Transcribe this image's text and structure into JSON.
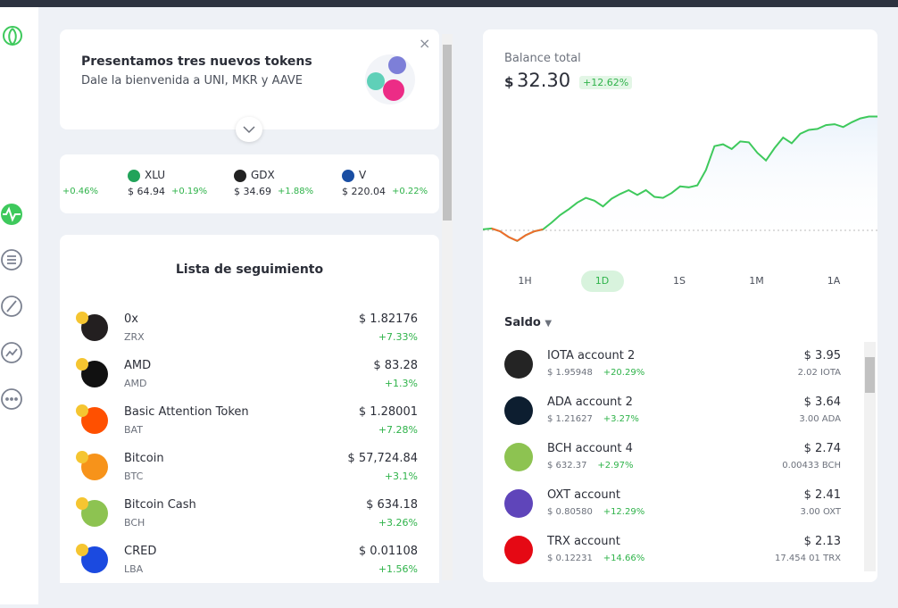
{
  "banner": {
    "title": "Presentamos tres nuevos tokens",
    "subtitle": "Dale la bienvenida a UNI, MKR y AAVE"
  },
  "ticker": [
    {
      "name": "",
      "price": "",
      "change": "+0.46%",
      "color": "#ffffff"
    },
    {
      "name": "XLU",
      "price": "$ 64.94",
      "change": "+0.19%",
      "color": "#22a35a"
    },
    {
      "name": "GDX",
      "price": "$ 34.69",
      "change": "+1.88%",
      "color": "#222222"
    },
    {
      "name": "V",
      "price": "$ 220.04",
      "change": "+0.22%",
      "color": "#1a4ea3"
    }
  ],
  "watchlist": {
    "title": "Lista de seguimiento",
    "rows": [
      {
        "name": "0x",
        "symbol": "ZRX",
        "price": "$ 1.82176",
        "change": "+7.33%",
        "color": "#231f20"
      },
      {
        "name": "AMD",
        "symbol": "AMD",
        "price": "$ 83.28",
        "change": "+1.3%",
        "color": "#111111"
      },
      {
        "name": "Basic Attention Token",
        "symbol": "BAT",
        "price": "$ 1.28001",
        "change": "+7.28%",
        "color": "#ff5000"
      },
      {
        "name": "Bitcoin",
        "symbol": "BTC",
        "price": "$ 57,724.84",
        "change": "+3.1%",
        "color": "#f7931a"
      },
      {
        "name": "Bitcoin Cash",
        "symbol": "BCH",
        "price": "$ 634.18",
        "change": "+3.26%",
        "color": "#8dc351"
      },
      {
        "name": "CRED",
        "symbol": "LBA",
        "price": "$ 0.01108",
        "change": "+1.56%",
        "color": "#1b4ae0"
      }
    ]
  },
  "balance": {
    "label": "Balance total",
    "currency": "$",
    "amount": "32.30",
    "change": "+12.62%",
    "chart": {
      "values": [
        15,
        16,
        13,
        7,
        3,
        9,
        13,
        15,
        22,
        30,
        36,
        43,
        48,
        45,
        39,
        47,
        52,
        56,
        51,
        56,
        49,
        48,
        53,
        60,
        59,
        61,
        77,
        102,
        104,
        99,
        107,
        106,
        95,
        87,
        100,
        111,
        105,
        115,
        119,
        120,
        124,
        125,
        122,
        127,
        131,
        133,
        133
      ],
      "baseline": 14,
      "ylim": [
        0,
        140
      ],
      "color": "#3ec95c",
      "below_color": "#f26b2b"
    },
    "ranges": [
      "1H",
      "1D",
      "1S",
      "1M",
      "1A"
    ],
    "active_range": 1
  },
  "accounts": {
    "title": "Saldo",
    "rows": [
      {
        "name": "IOTA account 2",
        "price": "$ 1.95948",
        "change": "+20.29%",
        "value": "$ 3.95",
        "amount": "2.02 IOTA",
        "color": "#242424"
      },
      {
        "name": "ADA account 2",
        "price": "$ 1.21627",
        "change": "+3.27%",
        "value": "$ 3.64",
        "amount": "3.00 ADA",
        "color": "#0d1e30"
      },
      {
        "name": "BCH account 4",
        "price": "$ 632.37",
        "change": "+2.97%",
        "value": "$ 2.74",
        "amount": "0.00433 BCH",
        "color": "#8dc351"
      },
      {
        "name": "OXT account",
        "price": "$ 0.80580",
        "change": "+12.29%",
        "value": "$ 2.41",
        "amount": "3.00 OXT",
        "color": "#5f45ba"
      },
      {
        "name": "TRX account",
        "price": "$ 0.12231",
        "change": "+14.66%",
        "value": "$ 2.13",
        "amount": "17.454 01 TRX",
        "color": "#e50914"
      }
    ]
  }
}
